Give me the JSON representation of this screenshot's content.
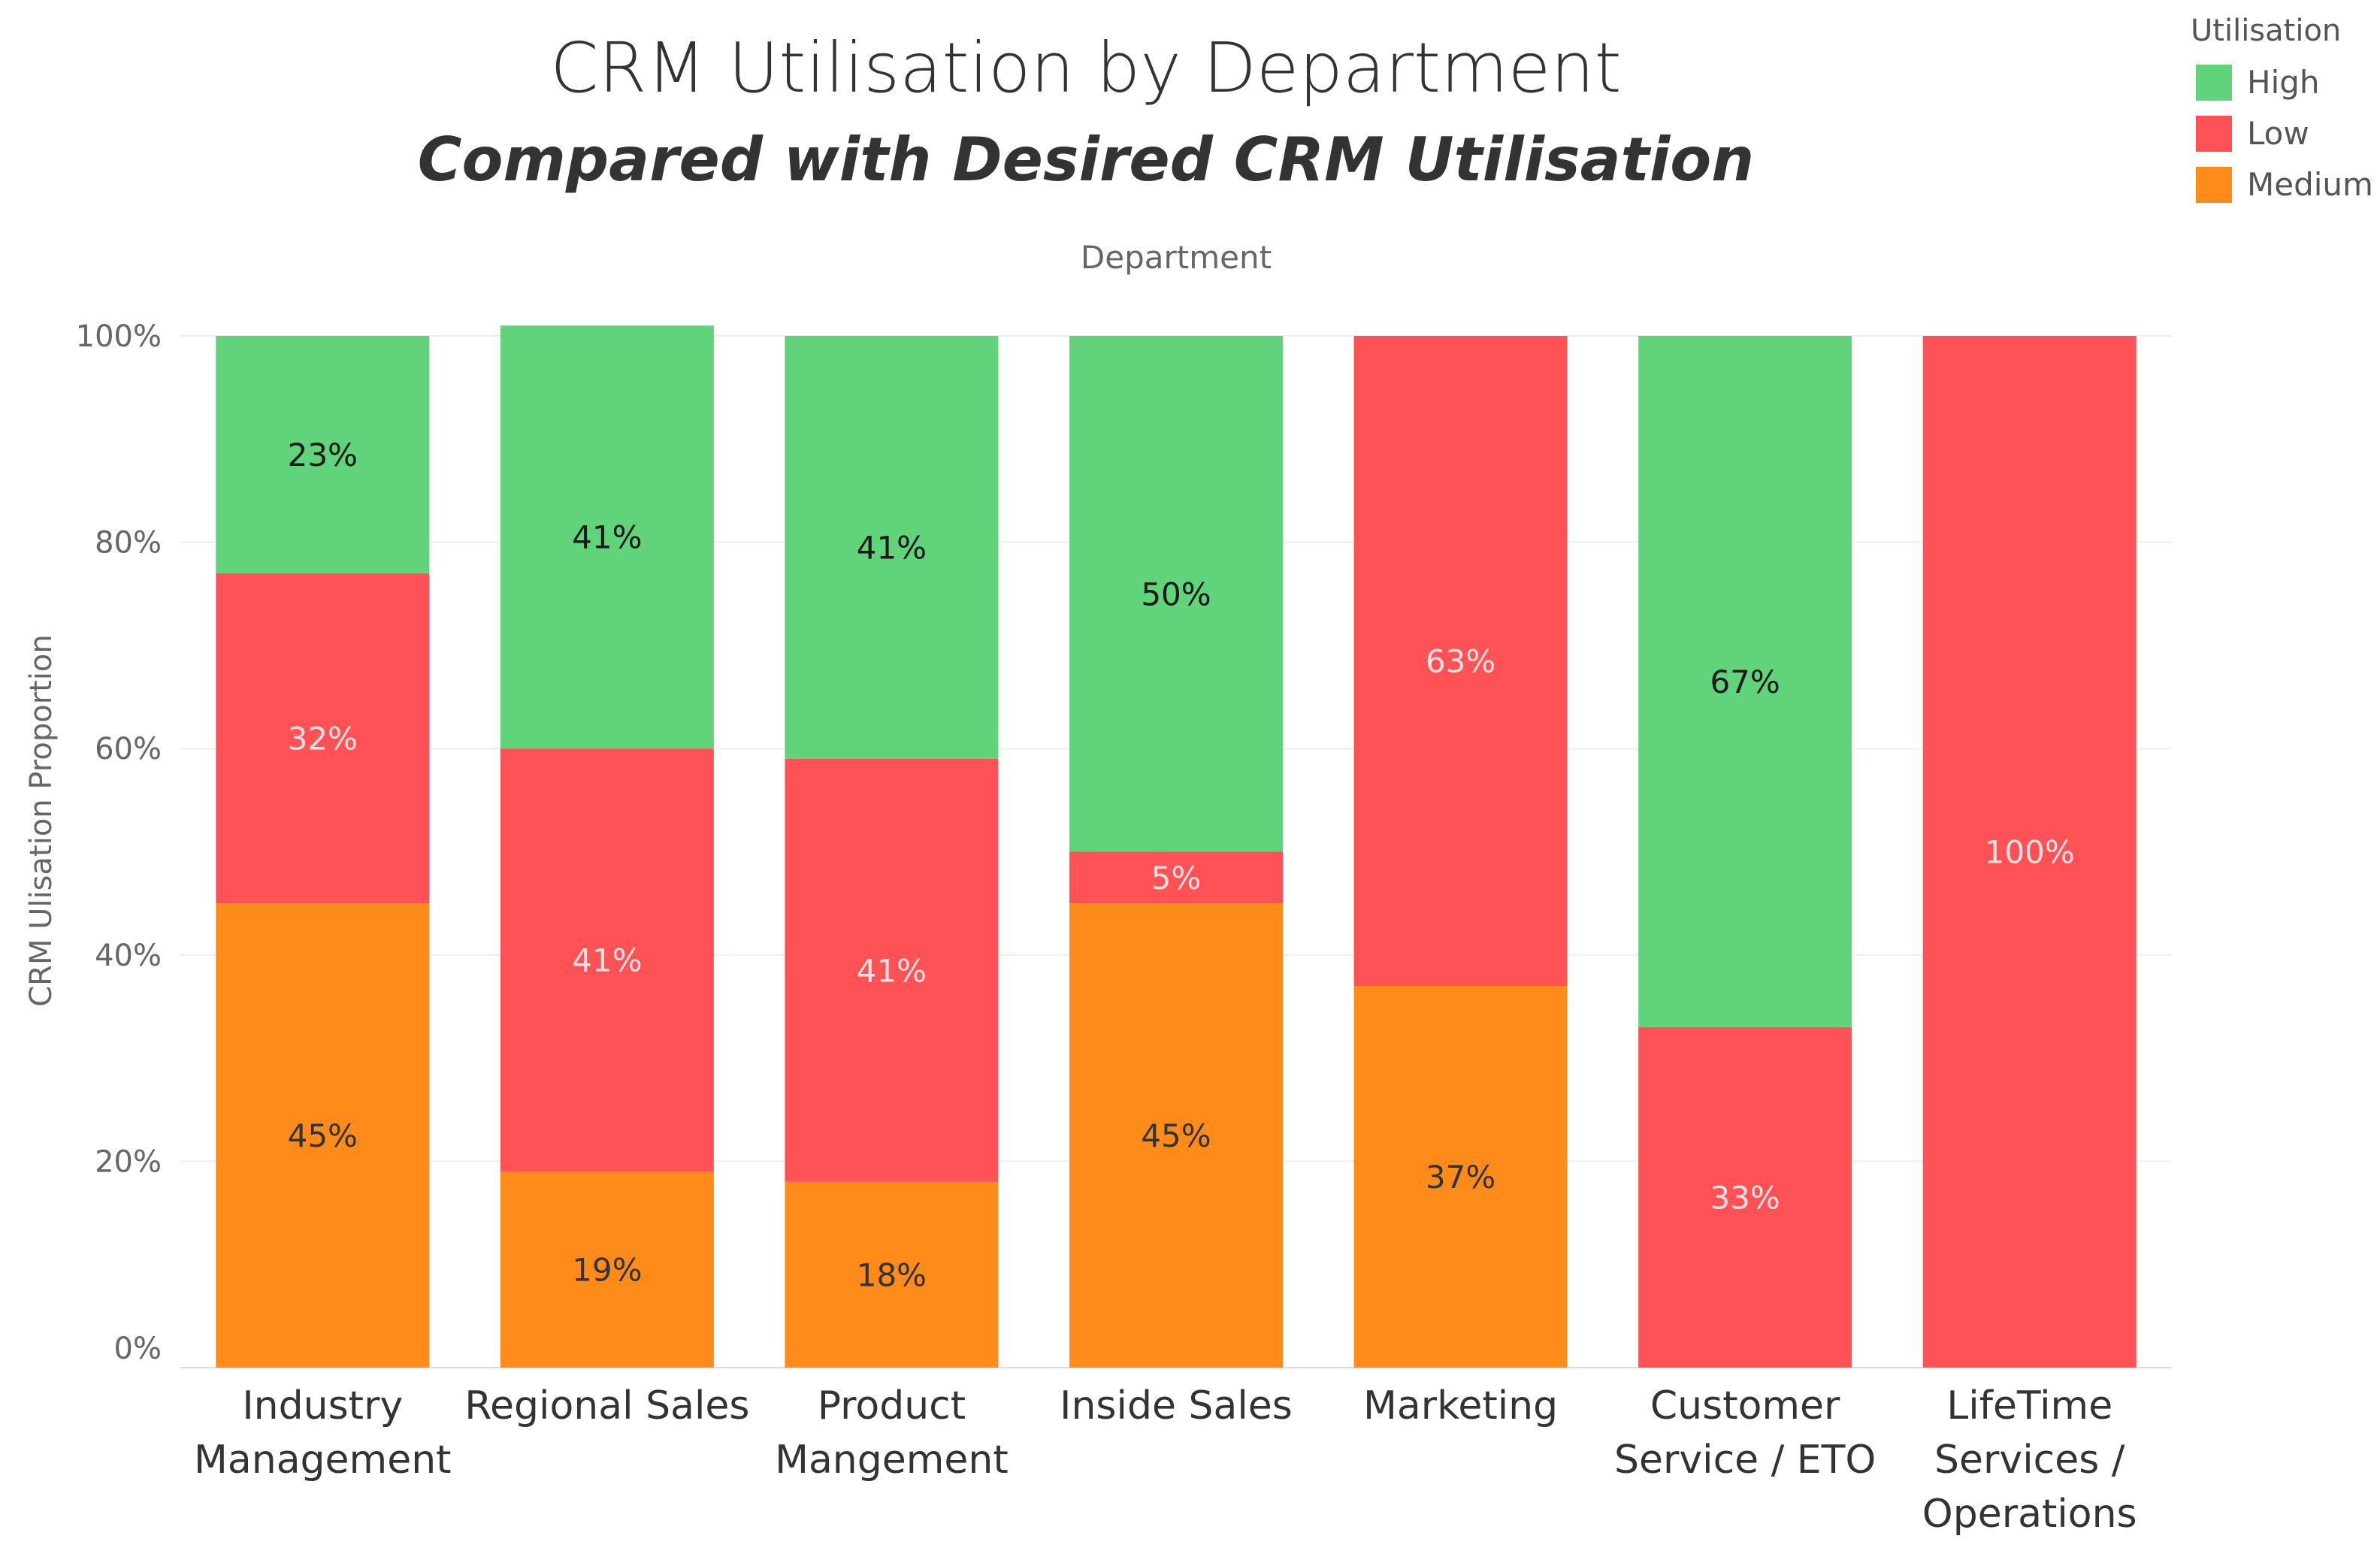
{
  "chart_data": {
    "type": "bar",
    "stacked": true,
    "title": "CRM Utilisation by Department",
    "subtitle": "Compared with Desired CRM Utilisation",
    "xlabel": "Department",
    "ylabel": "CRM Ulisation Proportion",
    "ylim": [
      0,
      100
    ],
    "yticks": [
      "0%",
      "20%",
      "40%",
      "60%",
      "80%",
      "100%"
    ],
    "categories": [
      [
        "Industry",
        "Management"
      ],
      [
        "Regional Sales"
      ],
      [
        "Product",
        "Mangement"
      ],
      [
        "Inside Sales"
      ],
      [
        "Marketing"
      ],
      [
        "Customer",
        "Service / ETO"
      ],
      [
        "LifeTime",
        "Services /",
        "Operations"
      ]
    ],
    "series": [
      {
        "name": "Medium",
        "color": "#ff8c1a",
        "label_color": "#333333",
        "values": [
          45,
          19,
          18,
          45,
          37,
          0,
          0
        ],
        "labels": [
          "45%",
          "19%",
          "18%",
          "45%",
          "37%",
          "",
          ""
        ]
      },
      {
        "name": "Low",
        "color": "#ff5257",
        "label_color": "#ffe0e0",
        "values": [
          32,
          41,
          41,
          5,
          63,
          33,
          100
        ],
        "labels": [
          "32%",
          "41%",
          "41%",
          "5%",
          "63%",
          "33%",
          "100%"
        ]
      },
      {
        "name": "High",
        "color": "#60d37b",
        "label_color": "#1a1a1a",
        "values": [
          23,
          41,
          41,
          50,
          0,
          67,
          0
        ],
        "labels": [
          "23%",
          "41%",
          "41%",
          "50%",
          "",
          "67%",
          ""
        ]
      }
    ],
    "legend": {
      "title": "Utilisation",
      "position": "top-right",
      "items": [
        {
          "name": "High",
          "color": "#60d37b"
        },
        {
          "name": "Low",
          "color": "#ff5257"
        },
        {
          "name": "Medium",
          "color": "#ff8c1a"
        }
      ]
    }
  }
}
